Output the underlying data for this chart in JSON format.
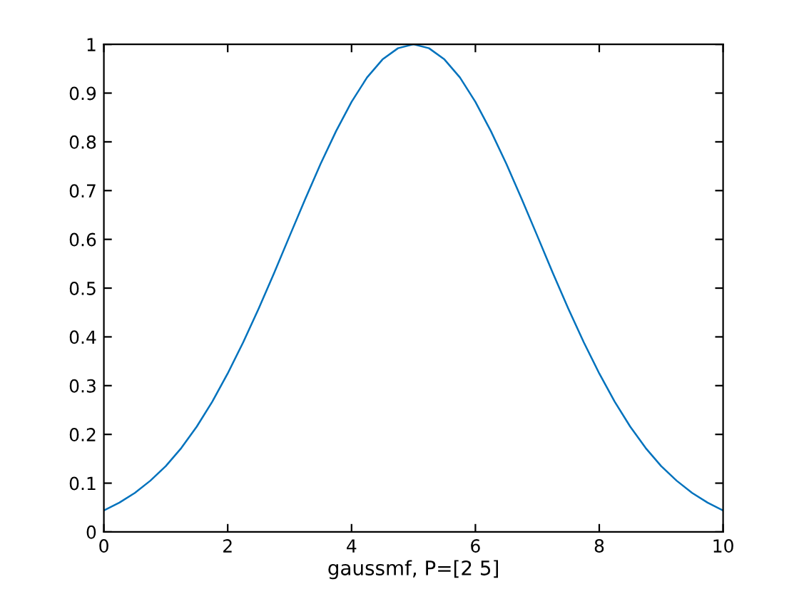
{
  "chart_data": {
    "type": "line",
    "xlabel": "gaussmf, P=[2 5]",
    "x": [
      0,
      0.25,
      0.5,
      0.75,
      1,
      1.25,
      1.5,
      1.75,
      2,
      2.25,
      2.5,
      2.75,
      3,
      3.25,
      3.5,
      3.75,
      4,
      4.25,
      4.5,
      4.75,
      5,
      5.25,
      5.5,
      5.75,
      6,
      6.25,
      6.5,
      6.75,
      7,
      7.25,
      7.5,
      7.75,
      8,
      8.25,
      8.5,
      8.75,
      9,
      9.25,
      9.5,
      9.75,
      10
    ],
    "series": [
      {
        "color": "#0072bd",
        "values": [
          0.044,
          0.06,
          0.08,
          0.105,
          0.135,
          0.172,
          0.216,
          0.267,
          0.325,
          0.389,
          0.458,
          0.531,
          0.607,
          0.682,
          0.755,
          0.822,
          0.882,
          0.932,
          0.969,
          0.992,
          1,
          0.992,
          0.969,
          0.932,
          0.882,
          0.822,
          0.755,
          0.682,
          0.607,
          0.531,
          0.458,
          0.389,
          0.325,
          0.267,
          0.216,
          0.172,
          0.135,
          0.105,
          0.08,
          0.06,
          0.044
        ]
      }
    ],
    "xlim": [
      0,
      10
    ],
    "xticks": [
      0,
      2,
      4,
      6,
      8,
      10
    ],
    "ylim": [
      0,
      1
    ],
    "yticks": [
      0,
      0.1,
      0.2,
      0.3,
      0.4,
      0.5,
      0.6,
      0.7,
      0.8,
      0.9,
      1
    ],
    "grid": false,
    "legend": false
  }
}
